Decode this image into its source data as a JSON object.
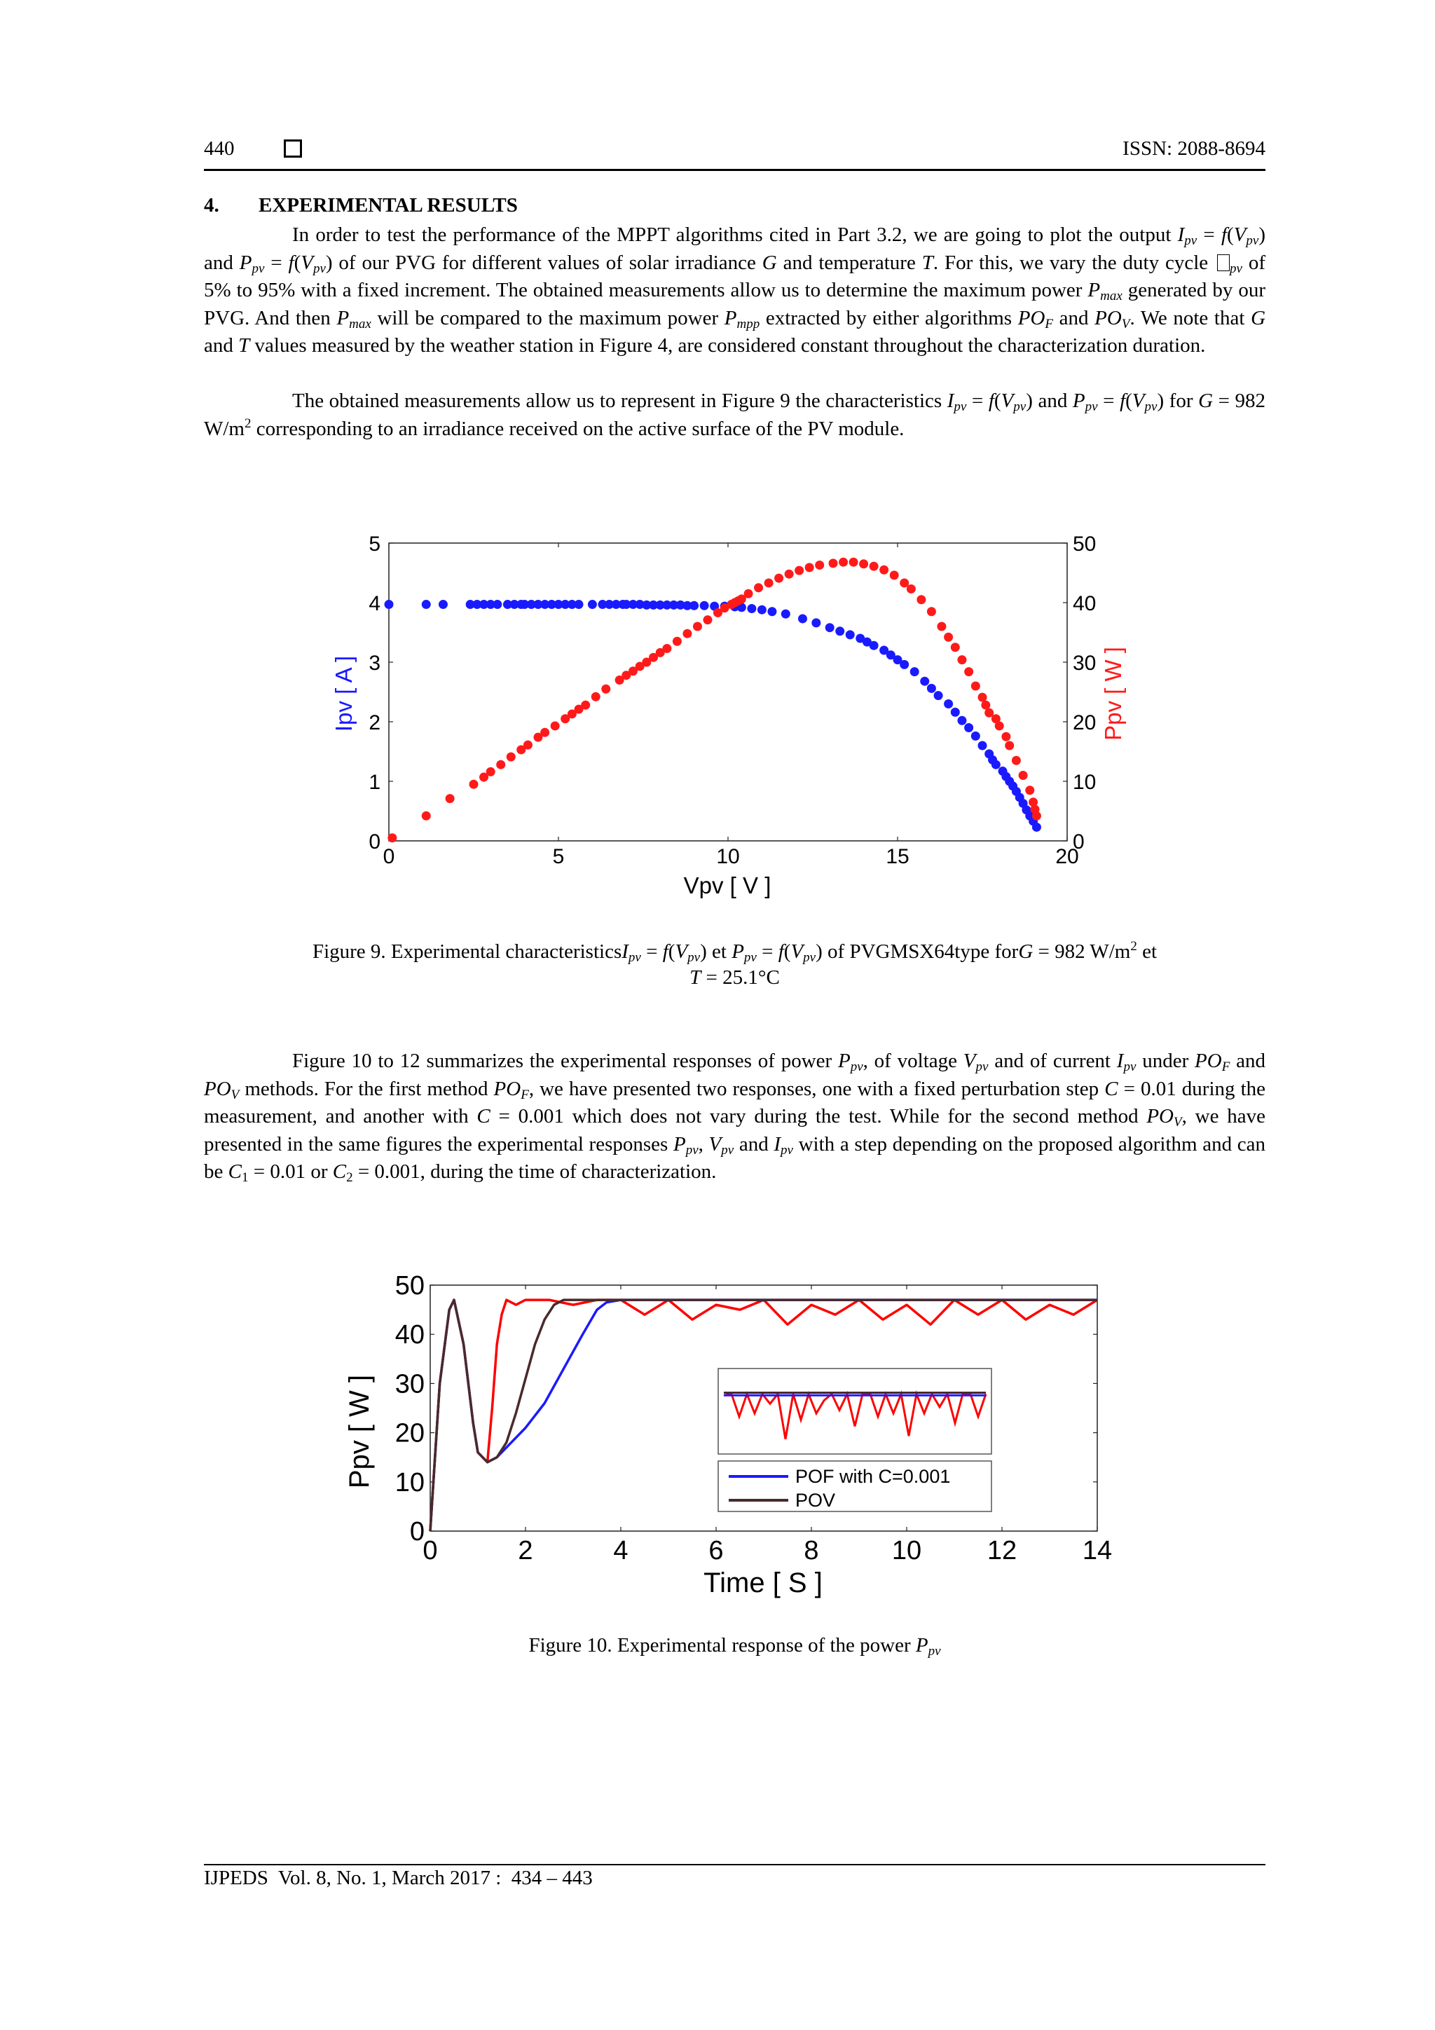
{
  "header": {
    "page_number": "440",
    "issn": "ISSN: 2088-8694"
  },
  "section": {
    "number": "4.",
    "title": "EXPERIMENTAL RESULTS"
  },
  "footer": {
    "journal": "IJPEDS  Vol. 8, No. 1, March 2017 :  434 – 443"
  },
  "caption9": {
    "t1": "Figure 9. Experimental characteristics",
    "t2": "et",
    "t3": "of PVGMSX64type for",
    "t4": " = 982 W/m",
    "t5": " et",
    "t6": " = 25.1°C"
  },
  "caption10": {
    "t1": "Figure 10. Experimental response of the power"
  },
  "chart_data": [
    {
      "type": "scatter",
      "x_label": "Vpv [ V ]",
      "y_label_left": "Ipv [ A ]",
      "y_label_right": "Ppv [ W ]",
      "xlim": [
        0,
        20
      ],
      "ylim_left": [
        0,
        5
      ],
      "ylim_right": [
        0,
        50
      ],
      "x_ticks": [
        "0",
        "5",
        "10",
        "15",
        "20"
      ],
      "y_ticks_left": [
        "0",
        "1",
        "2",
        "3",
        "4",
        "5"
      ],
      "y_ticks_right": [
        "0",
        "10",
        "20",
        "30",
        "40",
        "50"
      ],
      "series": [
        {
          "color": "#1a1aff",
          "axis": "left",
          "x": [
            0,
            1.1,
            1.6,
            2.4,
            2.6,
            2.8,
            3.0,
            3.2,
            3.5,
            3.7,
            3.9,
            4.0,
            4.2,
            4.4,
            4.6,
            4.8,
            5.0,
            5.2,
            5.4,
            5.6,
            6.0,
            6.3,
            6.5,
            6.7,
            6.9,
            7.0,
            7.2,
            7.4,
            7.6,
            7.8,
            8.0,
            8.2,
            8.4,
            8.6,
            8.8,
            9.0,
            9.3,
            9.6,
            9.9,
            10.2,
            10.4,
            10.7,
            11.0,
            11.3,
            11.7,
            12.2,
            12.6,
            13.0,
            13.3,
            13.6,
            13.9,
            14.1,
            14.3,
            14.6,
            14.8,
            15.0,
            15.2,
            15.5,
            15.8,
            16.0,
            16.2,
            16.5,
            16.7,
            16.9,
            17.1,
            17.3,
            17.5,
            17.7,
            17.8,
            17.9,
            18.1,
            18.2,
            18.3,
            18.4,
            18.5,
            18.6,
            18.7,
            18.8,
            18.9,
            19.0,
            19.1
          ],
          "y": [
            3.97,
            3.97,
            3.97,
            3.97,
            3.97,
            3.97,
            3.97,
            3.97,
            3.97,
            3.97,
            3.97,
            3.97,
            3.97,
            3.97,
            3.97,
            3.97,
            3.97,
            3.97,
            3.97,
            3.97,
            3.97,
            3.97,
            3.97,
            3.97,
            3.97,
            3.97,
            3.97,
            3.97,
            3.96,
            3.96,
            3.96,
            3.96,
            3.96,
            3.96,
            3.95,
            3.95,
            3.95,
            3.94,
            3.94,
            3.93,
            3.92,
            3.9,
            3.88,
            3.85,
            3.81,
            3.73,
            3.66,
            3.58,
            3.52,
            3.46,
            3.4,
            3.34,
            3.28,
            3.2,
            3.12,
            3.04,
            2.96,
            2.84,
            2.68,
            2.56,
            2.44,
            2.3,
            2.16,
            2.02,
            1.9,
            1.76,
            1.6,
            1.46,
            1.36,
            1.28,
            1.17,
            1.08,
            1.0,
            0.92,
            0.83,
            0.73,
            0.63,
            0.52,
            0.42,
            0.33,
            0.23
          ]
        },
        {
          "color": "#ff1a1a",
          "axis": "right",
          "x": [
            0.1,
            1.1,
            1.8,
            2.5,
            2.8,
            3.0,
            3.3,
            3.6,
            3.9,
            4.1,
            4.4,
            4.6,
            4.9,
            5.2,
            5.4,
            5.6,
            5.8,
            6.1,
            6.4,
            6.8,
            7.0,
            7.2,
            7.4,
            7.6,
            7.8,
            8.0,
            8.2,
            8.5,
            8.8,
            9.1,
            9.4,
            9.7,
            9.9,
            10.1,
            10.2,
            10.3,
            10.4,
            10.6,
            10.9,
            11.2,
            11.5,
            11.8,
            12.1,
            12.4,
            12.7,
            13.1,
            13.4,
            13.7,
            14.0,
            14.3,
            14.6,
            14.9,
            15.2,
            15.4,
            15.7,
            16.0,
            16.3,
            16.5,
            16.7,
            16.9,
            17.1,
            17.3,
            17.5,
            17.6,
            17.7,
            17.9,
            18.0,
            18.2,
            18.3,
            18.5,
            18.7,
            18.9,
            19.0,
            19.05,
            19.1
          ],
          "y": [
            0.5,
            4.2,
            7.1,
            9.5,
            10.7,
            11.6,
            12.8,
            14.1,
            15.3,
            16.1,
            17.4,
            18.2,
            19.3,
            20.5,
            21.3,
            22.1,
            22.8,
            24.2,
            25.5,
            27.0,
            27.8,
            28.5,
            29.3,
            30.0,
            30.8,
            31.6,
            32.3,
            33.5,
            34.8,
            36.0,
            37.1,
            38.3,
            39.1,
            39.7,
            40.0,
            40.3,
            40.6,
            41.5,
            42.5,
            43.3,
            44.1,
            44.8,
            45.4,
            45.9,
            46.3,
            46.6,
            46.8,
            46.8,
            46.5,
            46.1,
            45.5,
            44.6,
            43.3,
            42.3,
            40.5,
            38.5,
            36.0,
            34.2,
            32.5,
            30.4,
            28.4,
            26.0,
            24.1,
            22.8,
            21.5,
            20.5,
            19.3,
            17.5,
            16.0,
            13.5,
            11.0,
            8.5,
            6.5,
            5.3,
            4.2
          ]
        }
      ]
    },
    {
      "type": "line",
      "x_label": "Time [ S ]",
      "y_label": "Ppv [ W ]",
      "xlim": [
        0,
        14
      ],
      "ylim": [
        0,
        50
      ],
      "x_ticks": [
        "0",
        "2",
        "4",
        "6",
        "8",
        "10",
        "12",
        "14"
      ],
      "y_ticks": [
        "0",
        "10",
        "20",
        "30",
        "40",
        "50"
      ],
      "legend": [
        "POF with C=0.001",
        "POV"
      ],
      "series": [
        {
          "color": "#ff0000",
          "x": [
            0,
            0.2,
            0.4,
            0.5,
            0.7,
            0.9,
            1.0,
            1.2,
            1.3,
            1.4,
            1.5,
            1.6,
            1.8,
            2.0,
            2.5,
            3.0,
            3.5,
            4.0,
            4.5,
            5.0,
            5.5,
            6.0,
            6.5,
            7.0,
            7.5,
            8.0,
            8.5,
            9.0,
            9.5,
            10.0,
            10.5,
            11.0,
            11.5,
            12.0,
            12.5,
            13.0,
            13.5,
            14.0
          ],
          "y": [
            0,
            30,
            45,
            47,
            38,
            22,
            16,
            14,
            25,
            38,
            44,
            47,
            46,
            47,
            47,
            46,
            47,
            47,
            44,
            47,
            43,
            46,
            45,
            47,
            42,
            46,
            44,
            47,
            43,
            46,
            42,
            47,
            44,
            47,
            43,
            46,
            44,
            47
          ]
        },
        {
          "color": "#1a1aff",
          "x": [
            0,
            0.2,
            0.4,
            0.5,
            0.7,
            0.9,
            1.0,
            1.2,
            1.4,
            1.6,
            2.0,
            2.4,
            2.8,
            3.2,
            3.5,
            3.7,
            4.0,
            5.0,
            6.0,
            7.0,
            8.0,
            9.0,
            10.0,
            11.0,
            12.0,
            13.0,
            14.0
          ],
          "y": [
            0,
            30,
            45,
            47,
            38,
            22,
            16,
            14,
            15,
            17,
            21,
            26,
            33,
            40,
            45,
            46.5,
            47,
            47,
            47,
            47,
            47,
            47,
            47,
            47,
            47,
            47,
            47
          ]
        },
        {
          "color": "#4a2a2a",
          "x": [
            0,
            0.2,
            0.4,
            0.5,
            0.7,
            0.9,
            1.0,
            1.2,
            1.4,
            1.6,
            1.8,
            2.0,
            2.2,
            2.4,
            2.6,
            2.8,
            3.0,
            3.5,
            4.0,
            5.0,
            6.0,
            7.0,
            8.0,
            9.0,
            10.0,
            11.0,
            12.0,
            13.0,
            14.0
          ],
          "y": [
            0,
            30,
            45,
            47,
            38,
            22,
            16,
            14,
            15,
            18,
            24,
            31,
            38,
            43,
            46,
            47,
            47,
            47,
            47,
            47,
            47,
            47,
            47,
            47,
            47,
            47,
            47,
            47,
            47
          ]
        }
      ]
    }
  ]
}
